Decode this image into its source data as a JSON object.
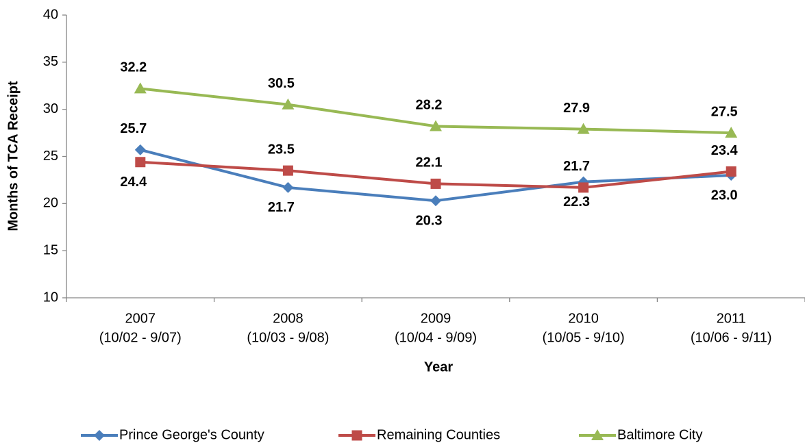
{
  "chart_data": {
    "type": "line",
    "y_axis_label": "Months of TCA Receipt",
    "x_axis_label": "Year",
    "categories": [
      [
        "2007",
        "(10/02 - 9/07)"
      ],
      [
        "2008",
        "(10/03 - 9/08)"
      ],
      [
        "2009",
        "(10/04 - 9/09)"
      ],
      [
        "2010",
        "(10/05 - 9/10)"
      ],
      [
        "2011",
        "(10/06 - 9/11)"
      ]
    ],
    "series": [
      {
        "name": "Prince George's County",
        "color": "#4a7ebb",
        "marker": "diamond",
        "values": [
          25.7,
          21.7,
          20.3,
          22.3,
          23.0
        ],
        "value_labels": [
          "25.7",
          "21.7",
          "20.3",
          "22.3",
          "23.0"
        ]
      },
      {
        "name": "Remaining Counties",
        "color": "#be4b48",
        "marker": "square",
        "values": [
          24.4,
          23.5,
          22.1,
          21.7,
          23.4
        ],
        "value_labels": [
          "24.4",
          "23.5",
          "22.1",
          "21.7",
          "23.4"
        ]
      },
      {
        "name": "Baltimore City",
        "color": "#98b954",
        "marker": "triangle",
        "values": [
          32.2,
          30.5,
          28.2,
          27.9,
          27.5
        ],
        "value_labels": [
          "32.2",
          "30.5",
          "28.2",
          "27.9",
          "27.5"
        ]
      }
    ],
    "ylim": [
      10,
      40
    ],
    "yticks": [
      10,
      15,
      20,
      25,
      30,
      35,
      40
    ],
    "grid": false,
    "legend": "bottom"
  }
}
